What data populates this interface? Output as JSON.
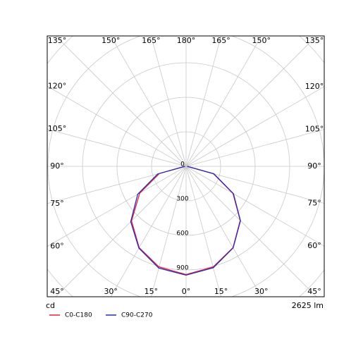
{
  "chart_data": {
    "type": "polar",
    "angles": [
      -90,
      -75,
      -60,
      -45,
      -30,
      -15,
      0,
      15,
      30,
      45,
      60,
      75,
      90
    ],
    "series": [
      {
        "name": "C0-C180",
        "color": "#e8203a",
        "values": [
          10,
          240,
          465,
          670,
          815,
          905,
          940,
          905,
          815,
          665,
          470,
          245,
          10
        ]
      },
      {
        "name": "C90-C270",
        "color": "#2b2bb8",
        "values": [
          10,
          255,
          485,
          680,
          820,
          915,
          945,
          912,
          818,
          668,
          475,
          250,
          10
        ]
      }
    ],
    "rlim": [
      0,
      1200
    ],
    "rticks": [
      0,
      300,
      600,
      900
    ],
    "grid_rings": [
      300,
      600,
      900,
      1200,
      1500
    ],
    "angle_labels": {
      "right": [
        {
          "value": 0,
          "label": "0°"
        },
        {
          "value": 15,
          "label": "15°"
        },
        {
          "value": 30,
          "label": "30°"
        },
        {
          "value": 45,
          "label": "45°"
        },
        {
          "value": 60,
          "label": "60°"
        },
        {
          "value": 75,
          "label": "75°"
        },
        {
          "value": 90,
          "label": "90°"
        },
        {
          "value": 105,
          "label": "105°"
        },
        {
          "value": 120,
          "label": "120°"
        },
        {
          "value": 135,
          "label": "135°"
        },
        {
          "value": 150,
          "label": "150°"
        },
        {
          "value": 165,
          "label": "165°"
        },
        {
          "value": 180,
          "label": "180°"
        }
      ],
      "left": [
        {
          "value": 15,
          "label": "15°"
        },
        {
          "value": 30,
          "label": "30°"
        },
        {
          "value": 45,
          "label": "45°"
        },
        {
          "value": 60,
          "label": "60°"
        },
        {
          "value": 75,
          "label": "75°"
        },
        {
          "value": 90,
          "label": "90°"
        },
        {
          "value": 105,
          "label": "105°"
        },
        {
          "value": 120,
          "label": "120°"
        },
        {
          "value": 135,
          "label": "135°"
        },
        {
          "value": 150,
          "label": "150°"
        },
        {
          "value": 165,
          "label": "165°"
        }
      ]
    },
    "unit_label": "cd",
    "flux_label": "2625 lm",
    "grid": true
  }
}
